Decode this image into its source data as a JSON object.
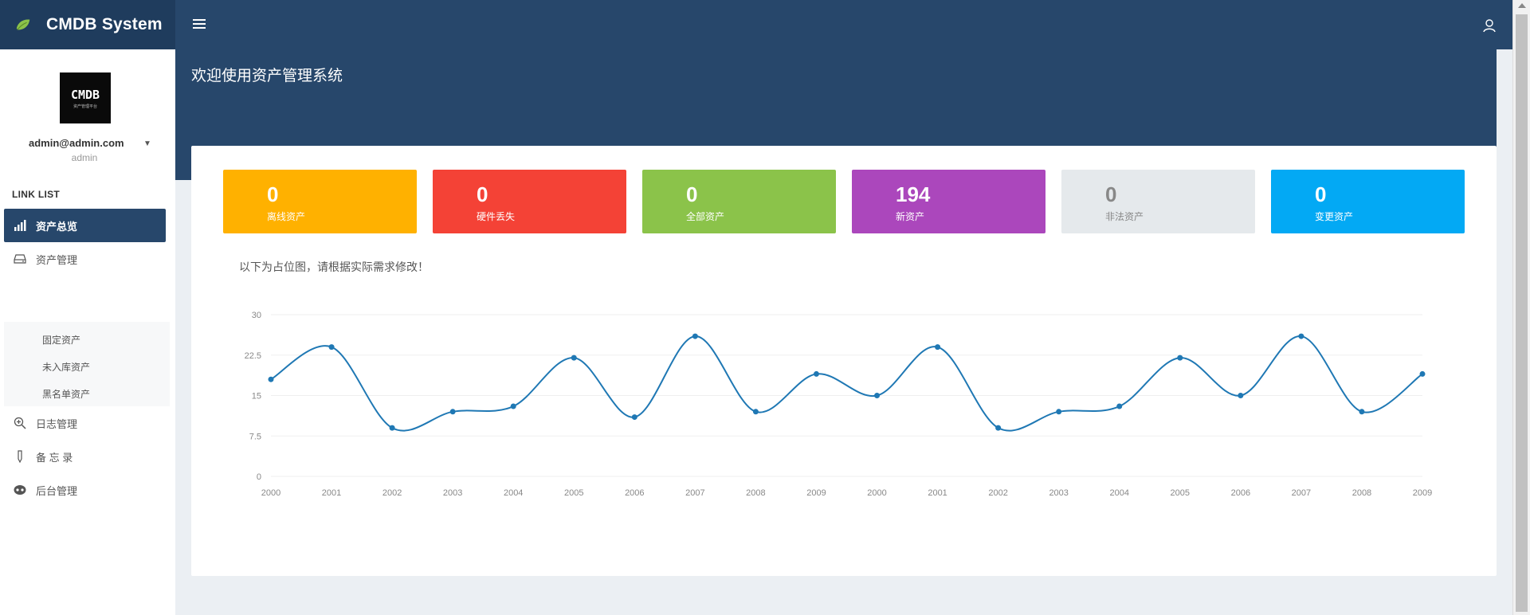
{
  "app": {
    "title": "CMDB System"
  },
  "header": {
    "welcome": "欢迎使用资产管理系统"
  },
  "user": {
    "email": "admin@admin.com",
    "role": "admin",
    "avatar_text": "CMDB",
    "avatar_subtext": "资产管理平台"
  },
  "sidebar": {
    "section_label": "LINK LIST",
    "items": [
      {
        "label": "资产总览",
        "icon": "bar-chart-icon",
        "active": true
      },
      {
        "label": "资产管理",
        "icon": "hard-drive-icon",
        "active": false
      },
      {
        "label": "日志管理",
        "icon": "zoom-in-icon",
        "active": false
      },
      {
        "label": "备 忘 录",
        "icon": "pen-icon",
        "active": false
      },
      {
        "label": "后台管理",
        "icon": "gamepad-icon",
        "active": false
      }
    ],
    "sub_items": [
      {
        "label": "固定资产"
      },
      {
        "label": "未入库资产"
      },
      {
        "label": "黑名单资产"
      }
    ]
  },
  "stats": [
    {
      "value": "0",
      "label": "离线资产",
      "color": "#ffb100"
    },
    {
      "value": "0",
      "label": "硬件丢失",
      "color": "#f44236"
    },
    {
      "value": "0",
      "label": "全部资产",
      "color": "#8bc34a"
    },
    {
      "value": "194",
      "label": "新资产",
      "color": "#ab47bc"
    },
    {
      "value": "0",
      "label": "非法资产",
      "color": "#e5e9ec"
    },
    {
      "value": "0",
      "label": "变更资产",
      "color": "#03a9f4"
    }
  ],
  "main": {
    "placeholder_note": "以下为占位图，请根据实际需求修改！"
  },
  "chart_data": {
    "type": "line",
    "categories": [
      "2000",
      "2001",
      "2002",
      "2003",
      "2004",
      "2005",
      "2006",
      "2007",
      "2008",
      "2009",
      "2000",
      "2001",
      "2002",
      "2003",
      "2004",
      "2005",
      "2006",
      "2007",
      "2008",
      "2009"
    ],
    "series": [
      {
        "values": [
          18,
          24,
          9,
          12,
          13,
          22,
          11,
          26,
          12,
          19,
          15,
          24,
          9,
          12,
          13,
          22,
          15,
          26,
          12,
          19
        ]
      }
    ],
    "y_ticks": [
      "0",
      "7.5",
      "15",
      "22.5",
      "30"
    ],
    "ylim": [
      0,
      30
    ],
    "grid": true,
    "line_color": "#1f78b4",
    "title": "",
    "xlabel": "",
    "ylabel": ""
  }
}
